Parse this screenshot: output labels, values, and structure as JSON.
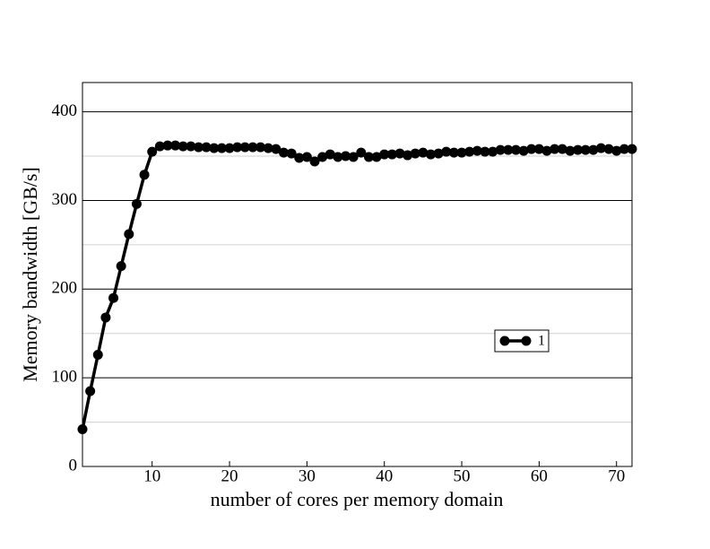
{
  "chart_data": {
    "type": "line",
    "x_label": "number of cores per memory domain",
    "y_label": "Memory bandwidth [GB/s]",
    "x": [
      1,
      2,
      3,
      4,
      5,
      6,
      7,
      8,
      9,
      10,
      11,
      12,
      13,
      14,
      15,
      16,
      17,
      18,
      19,
      20,
      21,
      22,
      23,
      24,
      25,
      26,
      27,
      28,
      29,
      30,
      31,
      32,
      33,
      34,
      35,
      36,
      37,
      38,
      39,
      40,
      41,
      42,
      43,
      44,
      45,
      46,
      47,
      48,
      49,
      50,
      51,
      52,
      53,
      54,
      55,
      56,
      57,
      58,
      59,
      60,
      61,
      62,
      63,
      64,
      65,
      66,
      67,
      68,
      69,
      70,
      71,
      72
    ],
    "series": [
      {
        "name": "1",
        "color": "#000000",
        "values": [
          42,
          85,
          126,
          168,
          190,
          226,
          262,
          296,
          329,
          355,
          361,
          362,
          362,
          361,
          361,
          360,
          360,
          359,
          359,
          359,
          360,
          360,
          360,
          360,
          359,
          358,
          354,
          353,
          348,
          349,
          344,
          349,
          352,
          349,
          350,
          349,
          354,
          349,
          349,
          352,
          352,
          353,
          351,
          353,
          354,
          352,
          353,
          355,
          354,
          354,
          355,
          356,
          355,
          355,
          357,
          357,
          357,
          356,
          358,
          358,
          356,
          358,
          358,
          356,
          357,
          357,
          357,
          359,
          358,
          356,
          358,
          358
        ]
      }
    ],
    "xlim": [
      1,
      72
    ],
    "xticks": [
      10,
      20,
      30,
      40,
      50,
      60,
      70
    ],
    "ylim": [
      0,
      433
    ],
    "yticks": [
      0,
      100,
      200,
      300,
      400
    ],
    "y_minor_grid": [
      50,
      150,
      250,
      350
    ],
    "grid": true,
    "legend": "right"
  }
}
